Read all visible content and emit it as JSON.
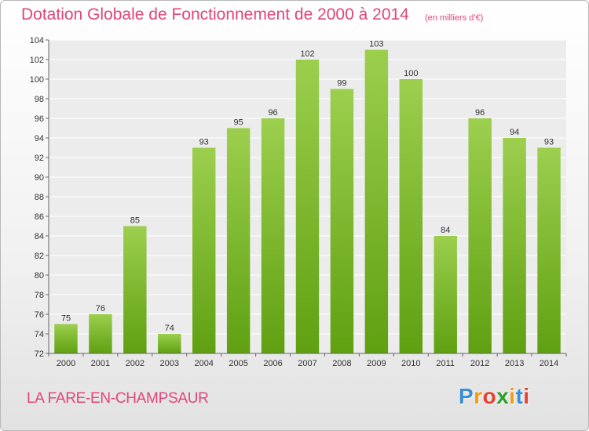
{
  "header": {
    "title": "Dotation Globale de Fonctionnement de 2000 à 2014",
    "subtitle": "(en milliers d'€)"
  },
  "footer": {
    "commune": "LA FARE-EN-CHAMPSAUR",
    "logo": [
      "P",
      "r",
      "o",
      "x",
      "i",
      "t",
      "i"
    ]
  },
  "colors": {
    "title": "#e0457b",
    "bar_top": "#9ccf4e",
    "bar_bottom": "#5fa011",
    "logo": [
      "#3a8fd0",
      "#f39c12",
      "#e8402e",
      "#2aa02a",
      "#f39c12",
      "#3a8fd0",
      "#e8402e"
    ]
  },
  "chart_data": {
    "type": "bar",
    "categories": [
      "2000",
      "2001",
      "2002",
      "2003",
      "2004",
      "2005",
      "2006",
      "2007",
      "2008",
      "2009",
      "2010",
      "2011",
      "2012",
      "2013",
      "2014"
    ],
    "values": [
      75,
      76,
      85,
      74,
      93,
      95,
      96,
      102,
      99,
      103,
      100,
      84,
      96,
      94,
      93
    ],
    "title": "Dotation Globale de Fonctionnement de 2000 à 2014",
    "subtitle": "(en milliers d'€)",
    "xlabel": "",
    "ylabel": "",
    "ylim": [
      72,
      104
    ],
    "yticks": [
      72,
      74,
      76,
      78,
      80,
      82,
      84,
      86,
      88,
      90,
      92,
      94,
      96,
      98,
      100,
      102,
      104
    ],
    "grid": true,
    "legend": "none"
  }
}
